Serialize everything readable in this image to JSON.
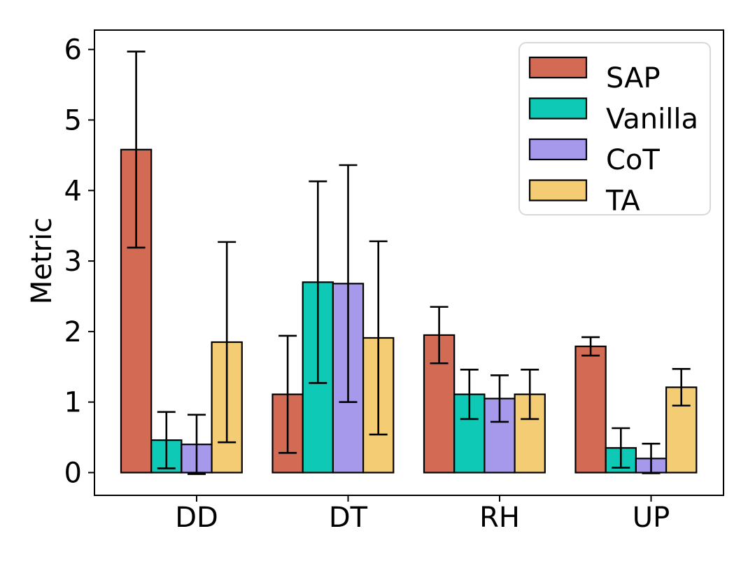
{
  "figure": {
    "background": "#ffffff"
  },
  "chart_data": {
    "type": "bar",
    "title": "",
    "xlabel": "",
    "ylabel": "Metric",
    "categories": [
      "DD",
      "DT",
      "RH",
      "UP"
    ],
    "series": [
      {
        "name": "SAP",
        "color": "#d26a54",
        "values": [
          4.58,
          1.11,
          1.95,
          1.79
        ],
        "yerr": [
          1.39,
          0.83,
          0.4,
          0.13
        ]
      },
      {
        "name": "Vanilla",
        "color": "#0ec9b5",
        "values": [
          0.46,
          2.7,
          1.11,
          0.35
        ],
        "yerr": [
          0.4,
          1.43,
          0.35,
          0.28
        ]
      },
      {
        "name": "CoT",
        "color": "#a698eb",
        "values": [
          0.4,
          2.68,
          1.05,
          0.2
        ],
        "yerr": [
          0.42,
          1.68,
          0.33,
          0.21
        ]
      },
      {
        "name": "TA",
        "color": "#f3cc73",
        "values": [
          1.85,
          1.91,
          1.11,
          1.21
        ],
        "yerr": [
          1.42,
          1.37,
          0.35,
          0.26
        ]
      }
    ],
    "yticks": [
      "0",
      "1",
      "2",
      "3",
      "4",
      "5",
      "6"
    ],
    "ylim": [
      -0.32,
      6.27
    ],
    "grid": false,
    "legend": {
      "position": "upper right",
      "entries": [
        "SAP",
        "Vanilla",
        "CoT",
        "TA"
      ]
    },
    "bar_edge_color": "#000000",
    "error_bar_color": "#000000",
    "axis_color": "#000000",
    "legend_border_color": "#d9d9d9",
    "legend_background": "#ffffff"
  }
}
